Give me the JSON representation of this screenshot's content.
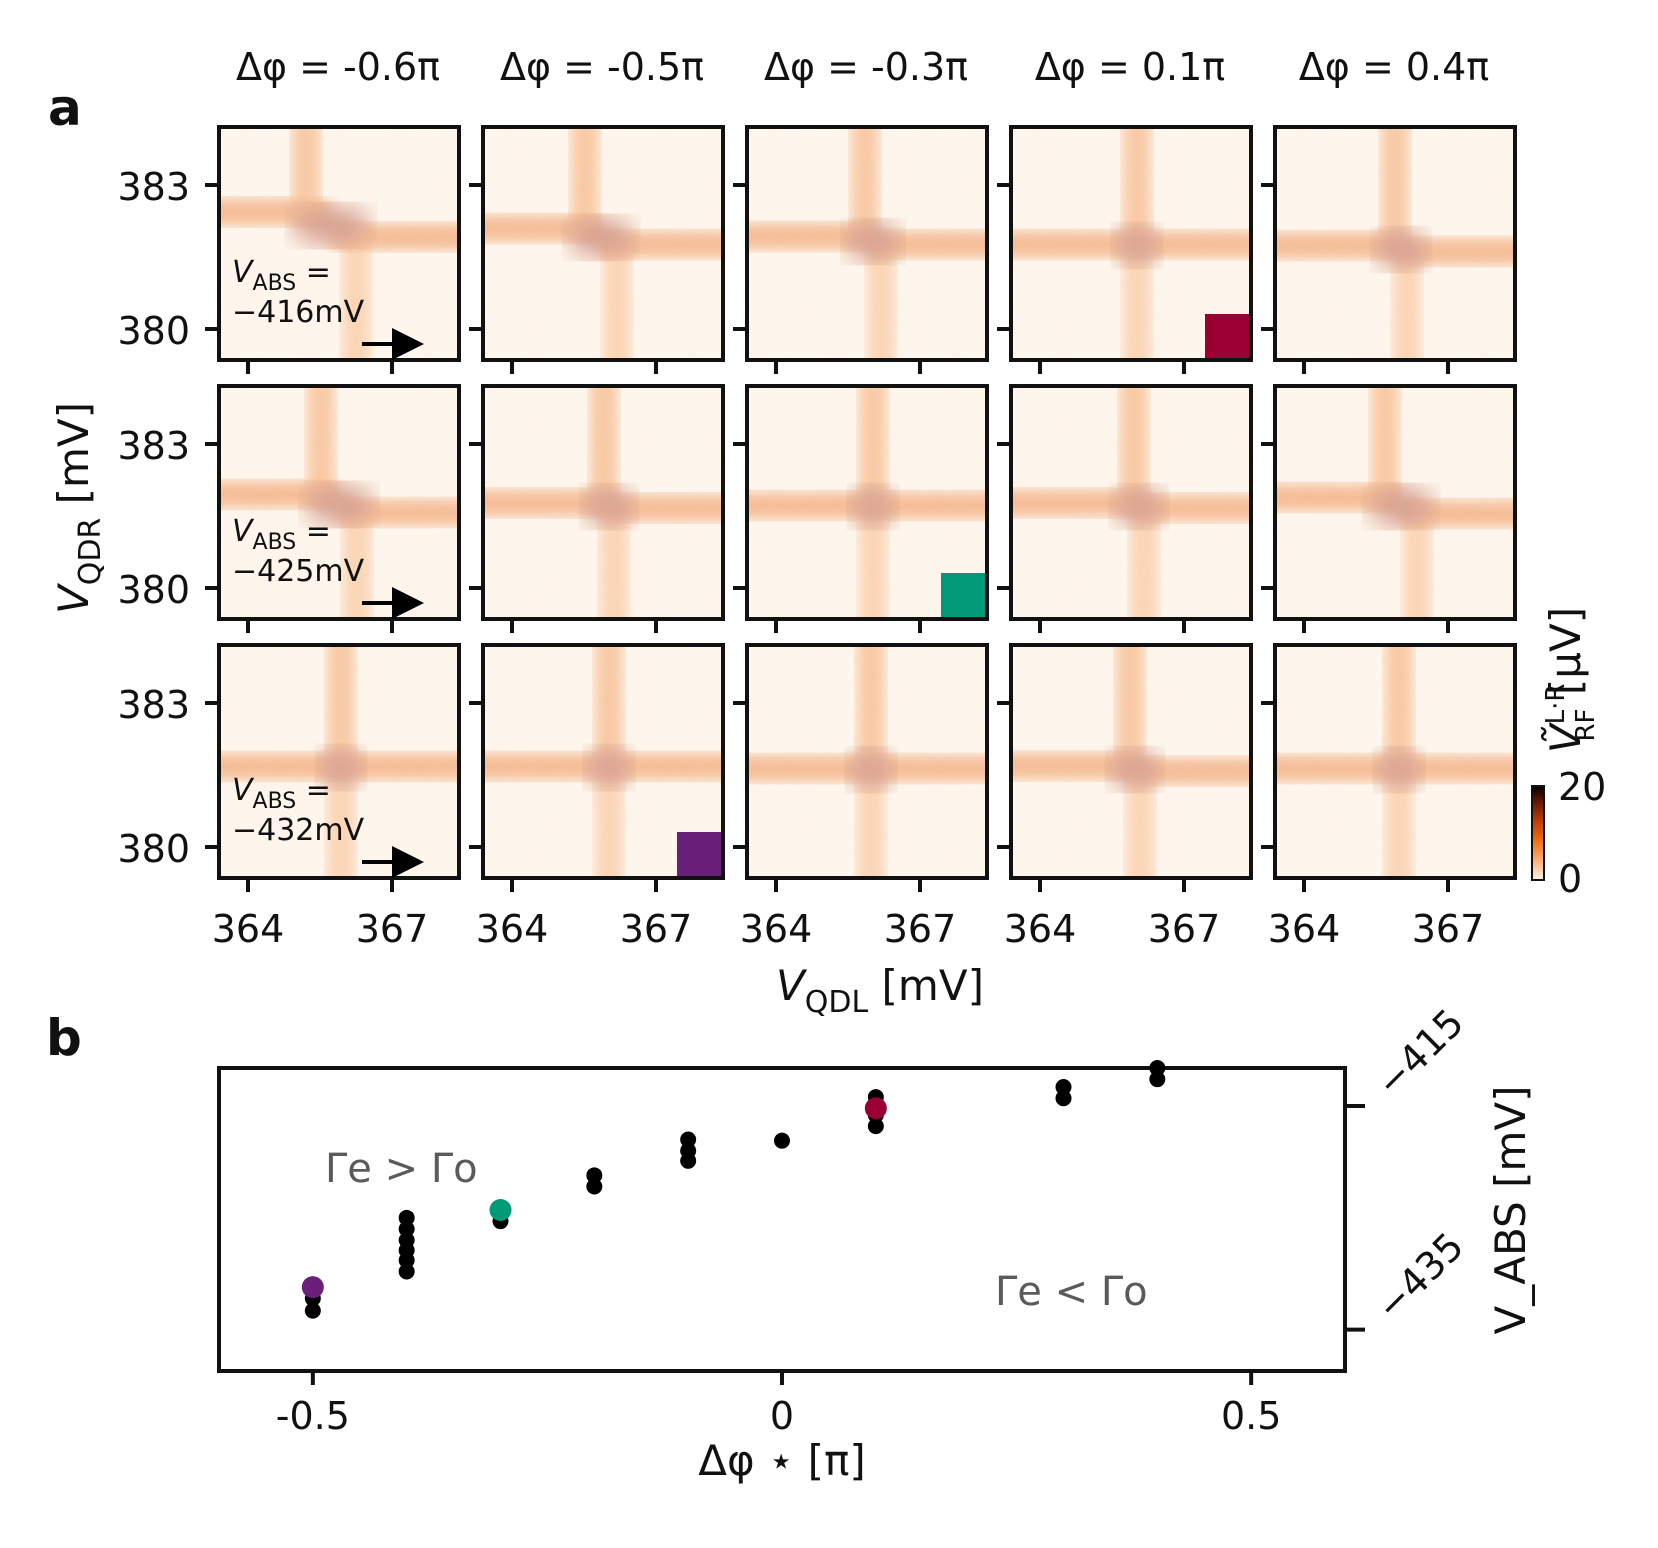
{
  "panel_labels": {
    "a": "a",
    "b": "b"
  },
  "panel_a": {
    "column_titles": [
      "Δφ = -0.6π",
      "Δφ = -0.5π",
      "Δφ = -0.3π",
      "Δφ = 0.1π",
      "Δφ = 0.4π"
    ],
    "row_annotations": [
      {
        "prefix": "V",
        "sub": "ABS",
        "eq": " =",
        "value": "−416mV"
      },
      {
        "prefix": "V",
        "sub": "ABS",
        "eq": " =",
        "value": "−425mV"
      },
      {
        "prefix": "V",
        "sub": "ABS",
        "eq": " =",
        "value": "−432mV"
      }
    ],
    "y_ticks": [
      "383",
      "380"
    ],
    "x_ticks": [
      "364",
      "367"
    ],
    "x_label": {
      "var": "V",
      "sub": "QDL",
      "unit": " [mV]"
    },
    "y_label": {
      "var": "V",
      "sub": "QDR",
      "unit": " [mV]"
    },
    "colorbar": {
      "label_var": "Ṽ",
      "label_sup": "L·R",
      "label_sub": "RF",
      "label_unit": " [μV]",
      "min": "0",
      "max": "20",
      "colors": [
        "#fff4ea",
        "#f9a35c",
        "#e8650f",
        "#b33a06",
        "#5a1402",
        "#000000"
      ]
    },
    "markers": [
      {
        "row": 0,
        "col": 3,
        "color": "#9b0035"
      },
      {
        "row": 1,
        "col": 2,
        "color": "#009a78"
      },
      {
        "row": 2,
        "col": 1,
        "color": "#6a1f7a"
      }
    ]
  },
  "chart_data": {
    "type": "scatter",
    "xlabel": "Δφ ⋆  [π]",
    "ylabel": "V_ABS [mV]",
    "xlim": [
      -0.6,
      0.6
    ],
    "ylim": [
      -438.7,
      -411.6
    ],
    "x_ticks": [
      "-0.5",
      "0",
      "0.5"
    ],
    "y_ticks": [
      "−415",
      "−435"
    ],
    "y_axis_side": "right",
    "annotations": [
      "Γe > Γo",
      "Γe < Γo"
    ],
    "series": [
      {
        "color": "#000000",
        "points": [
          [
            -0.5,
            -433.3
          ],
          [
            -0.5,
            -432.2
          ],
          [
            -0.4,
            -429.8
          ],
          [
            -0.4,
            -428.8
          ],
          [
            -0.4,
            -427.9
          ],
          [
            -0.4,
            -427.0
          ],
          [
            -0.4,
            -426.0
          ],
          [
            -0.4,
            -425.0
          ],
          [
            -0.3,
            -425.3
          ],
          [
            -0.2,
            -422.2
          ],
          [
            -0.2,
            -421.2
          ],
          [
            -0.1,
            -419.9
          ],
          [
            -0.1,
            -419.0
          ],
          [
            -0.1,
            -418.0
          ],
          [
            0.0,
            -418.1
          ],
          [
            0.1,
            -414.2
          ],
          [
            0.1,
            -415.2
          ],
          [
            0.1,
            -415.8
          ],
          [
            0.1,
            -416.8
          ],
          [
            0.3,
            -413.3
          ],
          [
            0.3,
            -414.3
          ],
          [
            0.4,
            -411.6
          ],
          [
            0.4,
            -412.6
          ]
        ]
      },
      {
        "color": "#009a78",
        "points": [
          [
            -0.3,
            -424.3
          ]
        ]
      },
      {
        "color": "#6a1f7a",
        "points": [
          [
            -0.5,
            -431.2
          ]
        ]
      },
      {
        "color": "#9b0035",
        "points": [
          [
            0.1,
            -415.2
          ]
        ]
      }
    ]
  }
}
